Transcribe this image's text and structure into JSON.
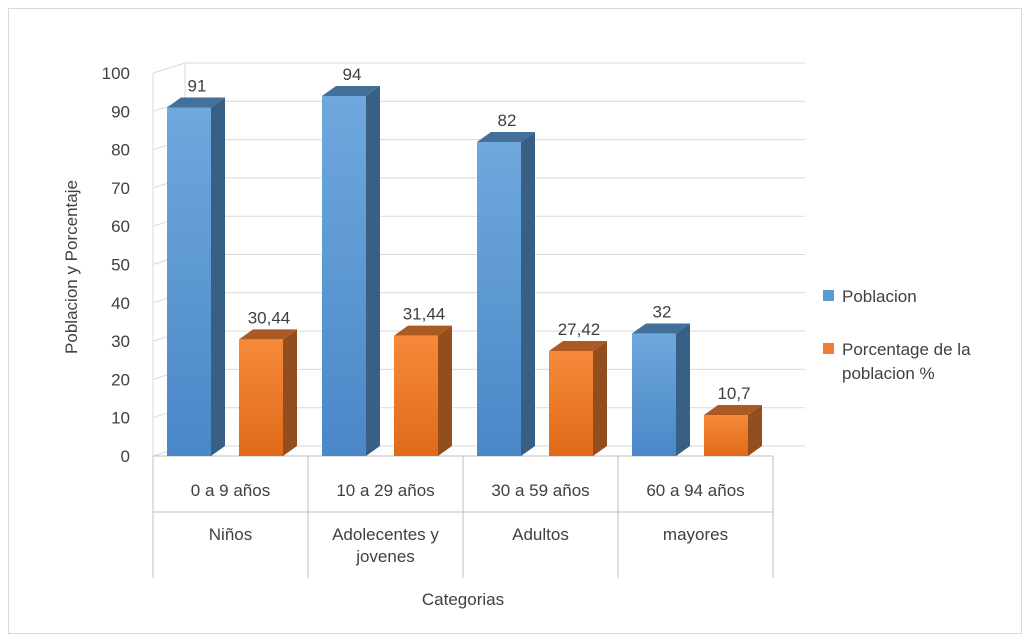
{
  "chart_data": {
    "type": "bar",
    "xlabel": "Categorias",
    "ylabel": "Poblacion y Porcentaje",
    "ylim": [
      0,
      100
    ],
    "y_ticks": [
      0,
      10,
      20,
      30,
      40,
      50,
      60,
      70,
      80,
      90,
      100
    ],
    "grid": true,
    "legend_position": "right",
    "categories": [
      {
        "range": "0 a 9 años",
        "group": "Niños"
      },
      {
        "range": "10 a 29 años",
        "group": "Adolecentes y jovenes"
      },
      {
        "range": "30 a 59 años",
        "group": "Adultos"
      },
      {
        "range": "60 a 94 años",
        "group": "mayores"
      }
    ],
    "series": [
      {
        "name": "Poblacion",
        "values": [
          91,
          94,
          82,
          32
        ],
        "labels": [
          "91",
          "94",
          "82",
          "32"
        ],
        "color": "#5b9bd5"
      },
      {
        "name": "Porcentage de la poblacion %",
        "values": [
          30.44,
          31.44,
          27.42,
          10.7
        ],
        "labels": [
          "30,44",
          "31,44",
          "27,42",
          "10,7"
        ],
        "color": "#ed7d31"
      }
    ]
  }
}
